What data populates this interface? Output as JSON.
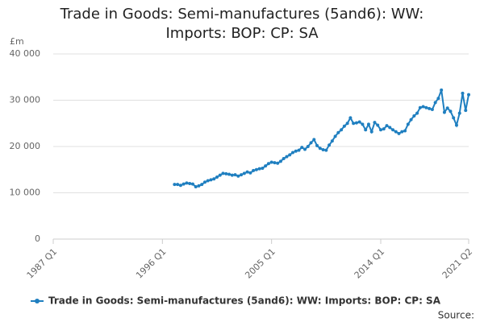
{
  "chart_data": {
    "type": "line",
    "title": "Trade in Goods: Semi-manufactures (5and6): WW: Imports: BOP: CP: SA",
    "y_label": "£m",
    "source": "Source:",
    "categories": [
      "1987 Q1",
      null,
      null,
      null,
      null,
      null,
      null,
      null,
      null,
      null,
      null,
      null,
      null,
      null,
      null,
      null,
      null,
      null,
      null,
      null,
      null,
      null,
      null,
      null,
      null,
      null,
      null,
      null,
      null,
      null,
      null,
      null,
      null,
      null,
      null,
      null,
      "1996 Q1",
      null,
      null,
      null,
      null,
      null,
      null,
      null,
      null,
      null,
      null,
      null,
      null,
      null,
      null,
      null,
      null,
      null,
      null,
      null,
      null,
      null,
      null,
      null,
      null,
      null,
      null,
      null,
      null,
      null,
      null,
      null,
      null,
      null,
      null,
      null,
      "2005 Q1",
      null,
      null,
      null,
      null,
      null,
      null,
      null,
      null,
      null,
      null,
      null,
      null,
      null,
      null,
      null,
      null,
      null,
      null,
      null,
      null,
      null,
      null,
      null,
      null,
      null,
      null,
      null,
      null,
      null,
      null,
      null,
      null,
      null,
      null,
      null,
      "2014 Q1",
      null,
      null,
      null,
      null,
      null,
      null,
      null,
      null,
      null,
      null,
      null,
      null,
      null,
      null,
      null,
      null,
      null,
      null,
      null,
      null,
      null,
      null,
      null,
      null,
      null,
      null,
      null,
      null,
      "2021 Q2"
    ],
    "series": [
      {
        "name": "Trade in Goods: Semi-manufactures (5and6): WW: Imports: BOP: CP: SA",
        "color": "#1f7fc0",
        "values": [
          null,
          null,
          null,
          null,
          null,
          null,
          null,
          null,
          null,
          null,
          null,
          null,
          null,
          null,
          null,
          null,
          null,
          null,
          null,
          null,
          null,
          null,
          null,
          null,
          null,
          null,
          null,
          null,
          null,
          null,
          null,
          null,
          null,
          null,
          null,
          null,
          null,
          null,
          null,
          null,
          11800,
          11800,
          11600,
          11900,
          12100,
          12000,
          11900,
          11300,
          11500,
          11800,
          12300,
          12600,
          12800,
          13000,
          13400,
          13800,
          14200,
          14100,
          14000,
          13800,
          13900,
          13600,
          13900,
          14200,
          14500,
          14300,
          14800,
          15000,
          15200,
          15300,
          15800,
          16300,
          16600,
          16500,
          16400,
          16800,
          17400,
          17800,
          18200,
          18700,
          19000,
          19200,
          19800,
          19400,
          20000,
          20800,
          21500,
          20200,
          19600,
          19300,
          19200,
          20300,
          21200,
          22200,
          23000,
          23600,
          24400,
          25000,
          26200,
          25000,
          25100,
          25300,
          24800,
          23600,
          24800,
          23200,
          25200,
          24600,
          23600,
          23800,
          24500,
          24100,
          23600,
          23200,
          22800,
          23200,
          23400,
          24800,
          25800,
          26600,
          27200,
          28400,
          28600,
          28400,
          28200,
          28000,
          29500,
          30400,
          32200,
          27400,
          28300,
          27600,
          26200,
          24600,
          27200,
          31500,
          27800,
          31200
        ]
      }
    ],
    "ylim": [
      0,
      40000
    ],
    "yticks": [
      0,
      {
        "value": 10000,
        "label": "10 000"
      },
      {
        "value": 20000,
        "label": "20 000"
      },
      {
        "value": 30000,
        "label": "30 000"
      },
      {
        "value": 40000,
        "label": "40 000"
      }
    ],
    "grid": true,
    "legend": "bottom"
  }
}
